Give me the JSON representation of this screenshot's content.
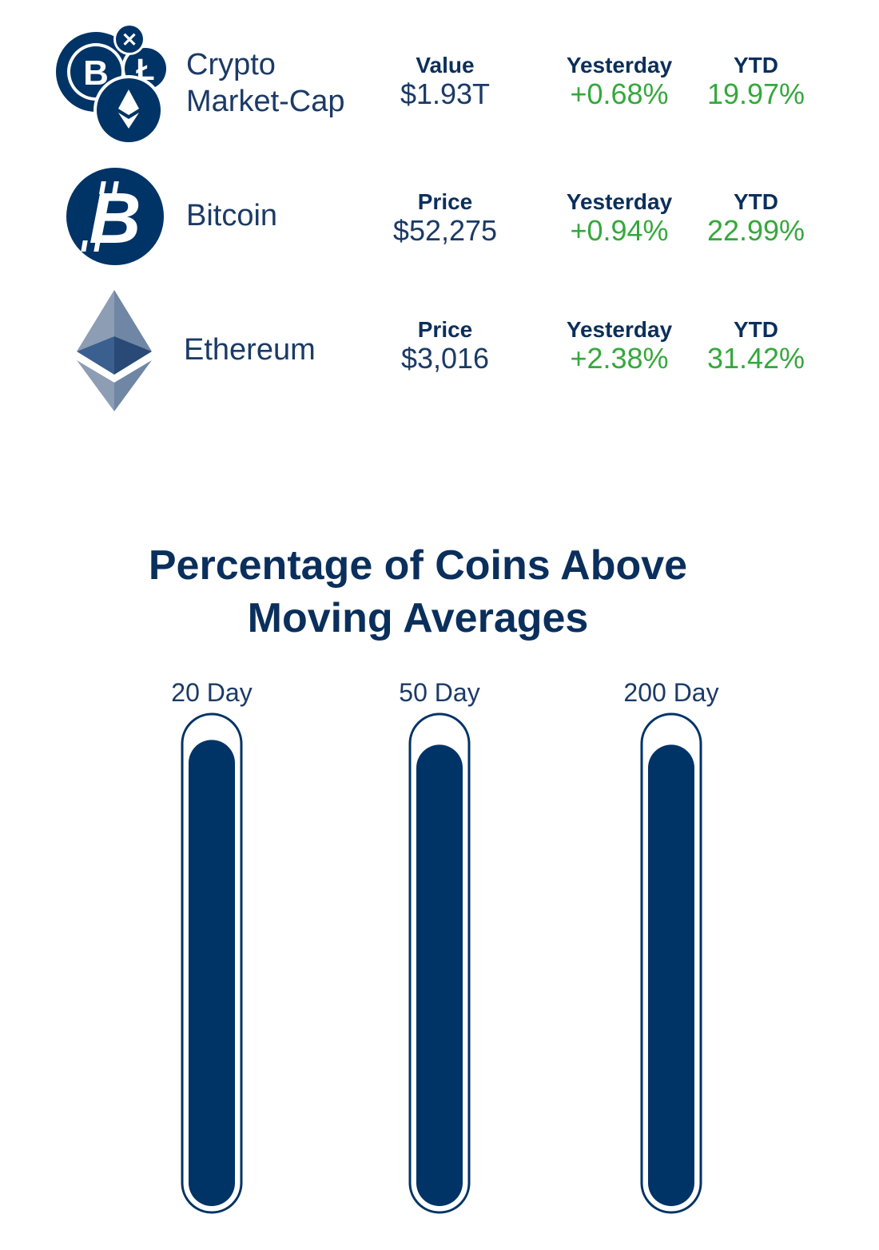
{
  "colors": {
    "navy": "#003366",
    "green": "#35a83c",
    "text": "#1b3a66"
  },
  "rows": [
    {
      "name_line1": "Crypto",
      "name_line2": "Market-Cap",
      "icon": "crypto-coins-icon",
      "value_label": "Value",
      "value": "$1.93T",
      "yesterday_label": "Yesterday",
      "yesterday": "+0.68%",
      "ytd_label": "YTD",
      "ytd": "19.97%"
    },
    {
      "name": "Bitcoin",
      "icon": "bitcoin-icon",
      "value_label": "Price",
      "value": "$52,275",
      "yesterday_label": "Yesterday",
      "yesterday": "+0.94%",
      "ytd_label": "YTD",
      "ytd": "22.99%"
    },
    {
      "name": "Ethereum",
      "icon": "ethereum-icon",
      "value_label": "Price",
      "value": "$3,016",
      "yesterday_label": "Yesterday",
      "yesterday": "+2.38%",
      "ytd_label": "YTD",
      "ytd": "31.42%"
    }
  ],
  "chart_data": {
    "type": "bar",
    "title_line1": "Percentage of Coins Above",
    "title_line2": "Moving Averages",
    "categories": [
      "20 Day",
      "50 Day",
      "200 Day"
    ],
    "values": [
      96,
      95,
      95
    ],
    "ylim": [
      0,
      100
    ]
  }
}
